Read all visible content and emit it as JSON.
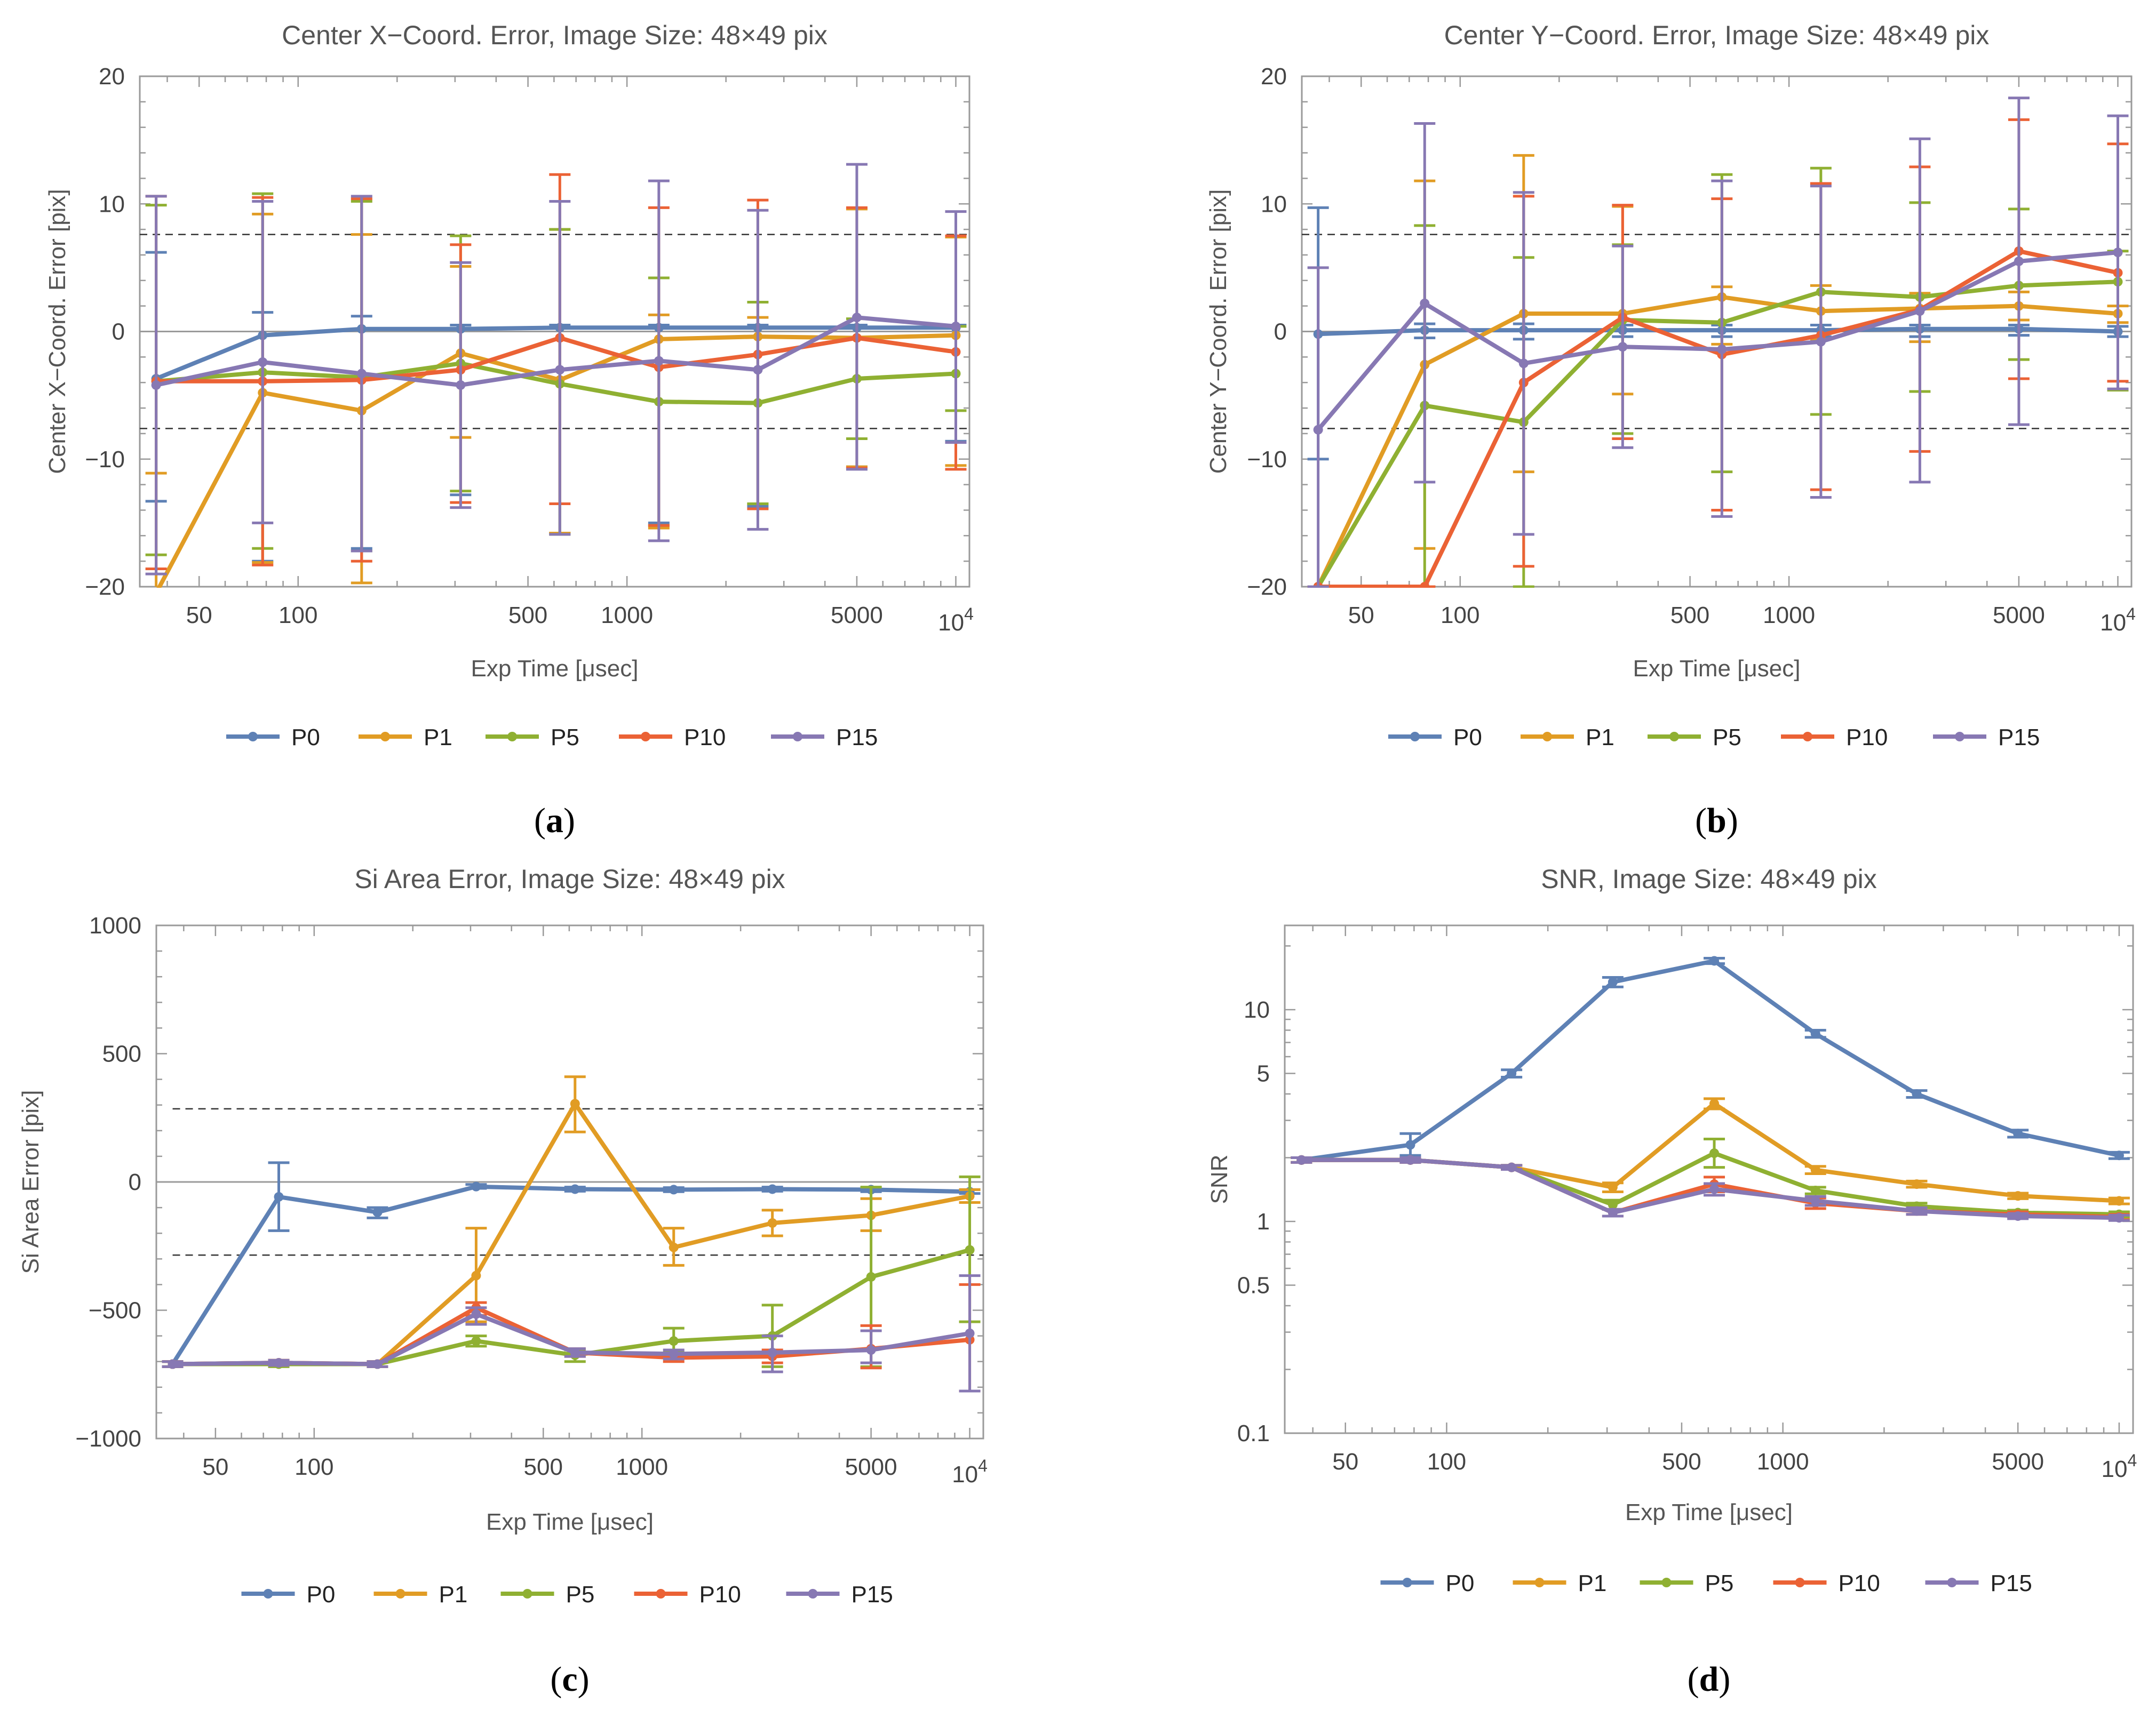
{
  "figure": {
    "legend": [
      {
        "name": "P0",
        "color": "#5E81B5"
      },
      {
        "name": "P1",
        "color": "#E19C24"
      },
      {
        "name": "P5",
        "color": "#8FB032"
      },
      {
        "name": "P10",
        "color": "#EB6235"
      },
      {
        "name": "P15",
        "color": "#8778B3"
      }
    ]
  },
  "chart_data": [
    {
      "id": "a",
      "caption": {
        "letter": "a",
        "open": "(",
        "close": ")"
      },
      "type": "line",
      "title": "Center X−Coord. Error, Image Size: 48×49 pix",
      "xlabel": "Exp Time [μsec]",
      "ylabel": "Center X−Coord. Error [pix]",
      "xscale": "log",
      "yscale": "linear",
      "xlim": [
        33,
        11000
      ],
      "ylim": [
        -20,
        20
      ],
      "xticks": [
        {
          "v": 50,
          "label": "50"
        },
        {
          "v": 100,
          "label": "100"
        },
        {
          "v": 500,
          "label": "500"
        },
        {
          "v": 1000,
          "label": "1000"
        },
        {
          "v": 5000,
          "label": "5000"
        }
      ],
      "xtick_special": {
        "v": 10000,
        "base": "10",
        "exp": "4"
      },
      "yticks": [
        {
          "v": -20,
          "label": "−20"
        },
        {
          "v": -10,
          "label": "−10"
        },
        {
          "v": 0,
          "label": "0"
        },
        {
          "v": 10,
          "label": "10"
        },
        {
          "v": 20,
          "label": "20"
        }
      ],
      "ref_lines": [
        7.6,
        -7.6
      ],
      "zero_line": true,
      "x": [
        37,
        78,
        156,
        312,
        625,
        1250,
        2500,
        5000,
        10000
      ],
      "series": [
        {
          "name": "P0",
          "values": [
            -3.7,
            -0.3,
            0.2,
            0.2,
            0.3,
            0.3,
            0.3,
            0.3,
            0.3
          ],
          "err_lo": [
            -13.3,
            -18.0,
            -17.0,
            -12.8,
            -15.8,
            -15.0,
            -13.7,
            -10.6,
            -8.6
          ],
          "err_hi": [
            6.2,
            1.5,
            1.2,
            0.5,
            0.5,
            0.5,
            0.5,
            0.5,
            0.5
          ]
        },
        {
          "name": "P1",
          "values": [
            -20.5,
            -4.8,
            -6.2,
            -1.7,
            -3.8,
            -0.6,
            -0.4,
            -0.5,
            -0.3
          ],
          "err_lo": [
            -20.5,
            -18.1,
            -19.7,
            -8.3,
            -15.8,
            -15.4,
            -13.5,
            -10.6,
            -10.5
          ],
          "err_hi": [
            -11.1,
            9.2,
            7.6,
            5.1,
            8.0,
            1.3,
            1.1,
            9.6,
            7.4
          ]
        },
        {
          "name": "P5",
          "values": [
            -3.9,
            -3.2,
            -3.6,
            -2.5,
            -4.1,
            -5.5,
            -5.6,
            -3.7,
            -3.3
          ],
          "err_lo": [
            -17.5,
            -17.0,
            -17.2,
            -12.5,
            -15.9,
            -15.2,
            -13.5,
            -8.4,
            -6.2
          ],
          "err_hi": [
            9.9,
            10.8,
            10.2,
            7.5,
            8.0,
            4.2,
            2.3,
            1.0,
            0.4
          ]
        },
        {
          "name": "P10",
          "values": [
            -3.9,
            -3.9,
            -3.8,
            -3.0,
            -0.5,
            -2.8,
            -1.8,
            -0.5,
            -1.6
          ],
          "err_lo": [
            -18.6,
            -18.3,
            -18.0,
            -13.4,
            -13.5,
            -15.2,
            -13.9,
            -10.7,
            -10.8
          ],
          "err_hi": [
            10.6,
            10.5,
            10.4,
            6.8,
            12.3,
            9.7,
            10.3,
            9.7,
            7.5
          ]
        },
        {
          "name": "P15",
          "values": [
            -4.2,
            -2.4,
            -3.3,
            -4.2,
            -3.0,
            -2.3,
            -3.0,
            1.1,
            0.4
          ],
          "err_lo": [
            -19.0,
            -15.0,
            -17.2,
            -13.8,
            -15.9,
            -16.4,
            -15.5,
            -10.8,
            -8.7
          ],
          "err_hi": [
            10.6,
            10.2,
            10.6,
            5.4,
            10.2,
            11.8,
            9.5,
            13.1,
            9.4
          ]
        }
      ]
    },
    {
      "id": "b",
      "caption": {
        "letter": "b",
        "open": "(",
        "close": ")"
      },
      "type": "line",
      "title": "Center Y−Coord. Error, Image Size: 48×49 pix",
      "xlabel": "Exp Time [μsec]",
      "ylabel": "Center Y−Coord. Error [pix]",
      "xscale": "log",
      "yscale": "linear",
      "xlim": [
        33,
        11000
      ],
      "ylim": [
        -20,
        20
      ],
      "xticks": [
        {
          "v": 50,
          "label": "50"
        },
        {
          "v": 100,
          "label": "100"
        },
        {
          "v": 500,
          "label": "500"
        },
        {
          "v": 1000,
          "label": "1000"
        },
        {
          "v": 5000,
          "label": "5000"
        }
      ],
      "xtick_special": {
        "v": 10000,
        "base": "10",
        "exp": "4"
      },
      "yticks": [
        {
          "v": -20,
          "label": "−20"
        },
        {
          "v": -10,
          "label": "−10"
        },
        {
          "v": 0,
          "label": "0"
        },
        {
          "v": 10,
          "label": "10"
        },
        {
          "v": 20,
          "label": "20"
        }
      ],
      "ref_lines": [
        7.6,
        -7.6
      ],
      "zero_line": true,
      "x": [
        37,
        78,
        156,
        312,
        625,
        1250,
        2500,
        5000,
        10000
      ],
      "series": [
        {
          "name": "P0",
          "values": [
            -0.2,
            0.1,
            0.1,
            0.1,
            0.1,
            0.1,
            0.2,
            0.2,
            0.0
          ],
          "err_lo": [
            -10.0,
            -0.5,
            -0.6,
            -0.4,
            -0.4,
            -0.4,
            -0.4,
            -0.3,
            -0.4
          ],
          "err_hi": [
            9.7,
            0.6,
            0.6,
            0.5,
            0.5,
            0.5,
            0.5,
            0.5,
            0.4
          ]
        },
        {
          "name": "P1",
          "values": [
            -20.0,
            -2.6,
            1.4,
            1.4,
            2.7,
            1.6,
            1.8,
            2.0,
            1.4
          ],
          "err_lo": [
            -20.0,
            -17.0,
            -11.0,
            -4.9,
            -1.0,
            -0.6,
            -0.8,
            0.9,
            0.7
          ],
          "err_hi": [
            -20.0,
            11.8,
            13.8,
            9.8,
            3.5,
            3.6,
            3.0,
            3.1,
            2.0
          ]
        },
        {
          "name": "P5",
          "values": [
            -20.0,
            -5.8,
            -7.1,
            0.9,
            0.7,
            3.1,
            2.7,
            3.6,
            3.9
          ],
          "err_lo": [
            -20.0,
            -20.0,
            -20.0,
            -8.0,
            -11.0,
            -6.5,
            -4.7,
            -2.2,
            -4.6
          ],
          "err_hi": [
            -20.0,
            8.3,
            5.8,
            6.8,
            12.3,
            12.8,
            10.1,
            9.6,
            6.3
          ]
        },
        {
          "name": "P10",
          "values": [
            -20.0,
            -20.0,
            -4.0,
            1.1,
            -1.8,
            -0.3,
            1.7,
            6.3,
            4.6
          ],
          "err_lo": [
            -20.0,
            -20.0,
            -18.4,
            -8.4,
            -14.0,
            -12.4,
            -9.4,
            -3.7,
            -3.9
          ],
          "err_hi": [
            -20.0,
            -20.0,
            10.6,
            9.9,
            10.4,
            11.6,
            12.9,
            16.6,
            14.7
          ]
        },
        {
          "name": "P15",
          "values": [
            -7.7,
            2.2,
            -2.5,
            -1.2,
            -1.4,
            -0.8,
            1.6,
            5.5,
            6.2
          ],
          "err_lo": [
            -20.0,
            -11.8,
            -15.9,
            -9.1,
            -14.5,
            -13.0,
            -11.8,
            -7.3,
            -4.5
          ],
          "err_hi": [
            5.0,
            16.3,
            10.9,
            6.7,
            11.8,
            11.4,
            15.1,
            18.3,
            16.9
          ]
        }
      ]
    },
    {
      "id": "c",
      "caption": {
        "letter": "c",
        "open": "(",
        "close": ")"
      },
      "type": "line",
      "title": "Si Area Error, Image Size: 48×49 pix",
      "xlabel": "Exp Time [μsec]",
      "ylabel": "Si Area Error [pix]",
      "xscale": "log",
      "yscale": "linear",
      "xlim": [
        33,
        11000
      ],
      "ylim": [
        -1000,
        1000
      ],
      "xticks": [
        {
          "v": 50,
          "label": "50"
        },
        {
          "v": 100,
          "label": "100"
        },
        {
          "v": 500,
          "label": "500"
        },
        {
          "v": 1000,
          "label": "1000"
        },
        {
          "v": 5000,
          "label": "5000"
        }
      ],
      "xtick_special": {
        "v": 10000,
        "base": "10",
        "exp": "4"
      },
      "yticks": [
        {
          "v": -1000,
          "label": "−1000"
        },
        {
          "v": -500,
          "label": "−500"
        },
        {
          "v": 0,
          "label": "0"
        },
        {
          "v": 500,
          "label": "500"
        },
        {
          "v": 1000,
          "label": "1000"
        }
      ],
      "ref_lines": [
        285,
        -285
      ],
      "zero_line": true,
      "x": [
        37,
        78,
        156,
        312,
        625,
        1250,
        2500,
        5000,
        10000
      ],
      "series": [
        {
          "name": "P0",
          "values": [
            -710,
            -58,
            -118,
            -18,
            -28,
            -30,
            -28,
            -30,
            -38
          ],
          "err_lo": [
            -720,
            -190,
            -140,
            -25,
            -36,
            -38,
            -36,
            -38,
            -45
          ],
          "err_hi": [
            -700,
            75,
            -100,
            -10,
            -20,
            -22,
            -20,
            -22,
            -30
          ]
        },
        {
          "name": "P1",
          "values": [
            -710,
            -705,
            -710,
            -365,
            305,
            -255,
            -160,
            -130,
            -55
          ],
          "err_lo": [
            -720,
            -715,
            -720,
            -545,
            195,
            -325,
            -210,
            -190,
            -80
          ],
          "err_hi": [
            -700,
            -695,
            -700,
            -180,
            410,
            -180,
            -110,
            -65,
            -30
          ]
        },
        {
          "name": "P5",
          "values": [
            -710,
            -710,
            -710,
            -620,
            -675,
            -620,
            -600,
            -370,
            -265
          ],
          "err_lo": [
            -720,
            -720,
            -720,
            -640,
            -700,
            -665,
            -720,
            -720,
            -545
          ],
          "err_hi": [
            -700,
            -700,
            -700,
            -600,
            -655,
            -570,
            -480,
            -20,
            20
          ]
        },
        {
          "name": "P10",
          "values": [
            -710,
            -705,
            -710,
            -490,
            -665,
            -685,
            -680,
            -650,
            -615
          ],
          "err_lo": [
            -720,
            -715,
            -720,
            -520,
            -680,
            -700,
            -705,
            -725,
            -815
          ],
          "err_hi": [
            -700,
            -695,
            -700,
            -470,
            -650,
            -670,
            -655,
            -560,
            -400
          ]
        },
        {
          "name": "P15",
          "values": [
            -710,
            -705,
            -710,
            -515,
            -665,
            -670,
            -665,
            -655,
            -590
          ],
          "err_lo": [
            -720,
            -715,
            -720,
            -555,
            -680,
            -690,
            -740,
            -705,
            -815
          ],
          "err_hi": [
            -700,
            -695,
            -700,
            -490,
            -650,
            -655,
            -600,
            -580,
            -365
          ]
        }
      ]
    },
    {
      "id": "d",
      "caption": {
        "letter": "d",
        "open": "(",
        "close": ")"
      },
      "type": "line",
      "title": "SNR, Image Size: 48×49 pix",
      "xlabel": "Exp Time [μsec]",
      "ylabel": "SNR",
      "xscale": "log",
      "yscale": "log",
      "xlim": [
        33,
        11000
      ],
      "ylim": [
        0.1,
        25
      ],
      "xticks": [
        {
          "v": 50,
          "label": "50"
        },
        {
          "v": 100,
          "label": "100"
        },
        {
          "v": 500,
          "label": "500"
        },
        {
          "v": 1000,
          "label": "1000"
        },
        {
          "v": 5000,
          "label": "5000"
        }
      ],
      "xtick_special": {
        "v": 10000,
        "base": "10",
        "exp": "4"
      },
      "yticks": [
        {
          "v": 0.1,
          "label": "0.1"
        },
        {
          "v": 0.5,
          "label": "0.5"
        },
        {
          "v": 1,
          "label": "1"
        },
        {
          "v": 5,
          "label": "5"
        },
        {
          "v": 10,
          "label": "10"
        }
      ],
      "ref_lines": [],
      "zero_line": false,
      "x": [
        37,
        78,
        156,
        312,
        625,
        1250,
        2500,
        5000,
        10000
      ],
      "series": [
        {
          "name": "P0",
          "values": [
            1.95,
            2.3,
            5.0,
            13.5,
            17.0,
            7.7,
            4.0,
            2.6,
            2.05
          ],
          "err_lo": [
            1.9,
            2.05,
            4.8,
            12.8,
            16.5,
            7.4,
            3.85,
            2.5,
            1.98
          ],
          "err_hi": [
            2.0,
            2.6,
            5.2,
            14.2,
            17.5,
            8.0,
            4.15,
            2.7,
            2.12
          ]
        },
        {
          "name": "P1",
          "values": [
            1.95,
            1.95,
            1.8,
            1.45,
            3.6,
            1.75,
            1.5,
            1.32,
            1.25
          ],
          "err_lo": [
            1.9,
            1.9,
            1.76,
            1.38,
            3.4,
            1.68,
            1.45,
            1.28,
            1.21
          ],
          "err_hi": [
            2.0,
            2.0,
            1.84,
            1.52,
            3.8,
            1.82,
            1.55,
            1.36,
            1.29
          ]
        },
        {
          "name": "P5",
          "values": [
            1.95,
            1.95,
            1.8,
            1.2,
            2.1,
            1.4,
            1.18,
            1.1,
            1.08
          ],
          "err_lo": [
            1.9,
            1.9,
            1.76,
            1.14,
            1.8,
            1.35,
            1.14,
            1.07,
            1.05
          ],
          "err_hi": [
            2.0,
            2.0,
            1.84,
            1.26,
            2.45,
            1.45,
            1.22,
            1.13,
            1.11
          ]
        },
        {
          "name": "P10",
          "values": [
            1.95,
            1.95,
            1.8,
            1.1,
            1.5,
            1.22,
            1.12,
            1.08,
            1.05
          ],
          "err_lo": [
            1.9,
            1.9,
            1.76,
            1.06,
            1.38,
            1.15,
            1.08,
            1.05,
            1.02
          ],
          "err_hi": [
            2.0,
            2.0,
            1.84,
            1.14,
            1.62,
            1.29,
            1.16,
            1.11,
            1.08
          ]
        },
        {
          "name": "P15",
          "values": [
            1.95,
            1.95,
            1.8,
            1.1,
            1.42,
            1.25,
            1.12,
            1.06,
            1.04
          ],
          "err_lo": [
            1.9,
            1.9,
            1.76,
            1.06,
            1.33,
            1.19,
            1.08,
            1.03,
            1.01
          ],
          "err_hi": [
            2.0,
            2.0,
            1.84,
            1.14,
            1.51,
            1.31,
            1.16,
            1.09,
            1.07
          ]
        }
      ]
    }
  ]
}
